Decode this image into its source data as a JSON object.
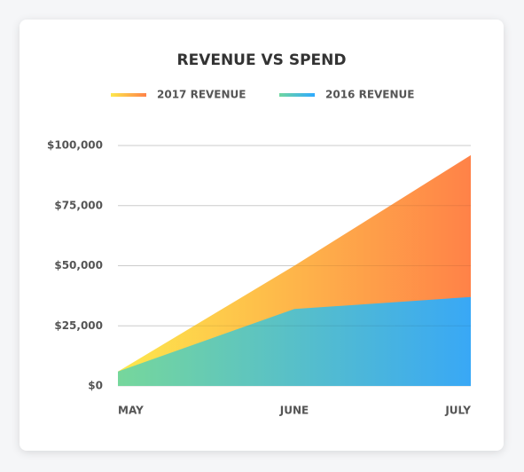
{
  "chart_data": {
    "type": "area",
    "title": "REVENUE VS SPEND",
    "categories": [
      "MAY",
      "JUNE",
      "JULY"
    ],
    "series": [
      {
        "name": "2017 REVENUE",
        "gradient": [
          "#fde84c",
          "#ff8248"
        ],
        "values": [
          6000,
          50000,
          96000
        ]
      },
      {
        "name": "2016 REVENUE",
        "gradient": [
          "#6fd6a0",
          "#2eaaff"
        ],
        "values": [
          6000,
          32000,
          37000
        ]
      }
    ],
    "ylim": [
      0,
      100000
    ],
    "yticks": [
      {
        "value": 0,
        "label": "$0"
      },
      {
        "value": 25000,
        "label": "$25,000"
      },
      {
        "value": 50000,
        "label": "$50,000"
      },
      {
        "value": 75000,
        "label": "$75,000"
      },
      {
        "value": 100000,
        "label": "$100,000"
      }
    ],
    "grid": true
  }
}
